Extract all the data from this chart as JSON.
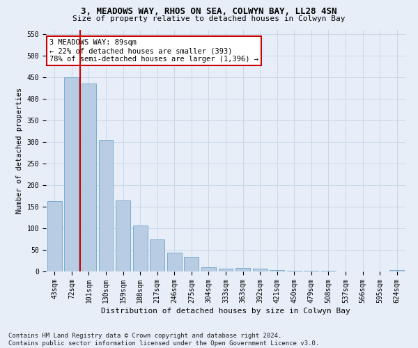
{
  "title1": "3, MEADOWS WAY, RHOS ON SEA, COLWYN BAY, LL28 4SN",
  "title2": "Size of property relative to detached houses in Colwyn Bay",
  "xlabel": "Distribution of detached houses by size in Colwyn Bay",
  "ylabel": "Number of detached properties",
  "categories": [
    "43sqm",
    "72sqm",
    "101sqm",
    "130sqm",
    "159sqm",
    "188sqm",
    "217sqm",
    "246sqm",
    "275sqm",
    "304sqm",
    "333sqm",
    "363sqm",
    "392sqm",
    "421sqm",
    "450sqm",
    "479sqm",
    "508sqm",
    "537sqm",
    "566sqm",
    "595sqm",
    "624sqm"
  ],
  "values": [
    163,
    450,
    435,
    305,
    165,
    107,
    74,
    44,
    34,
    9,
    7,
    8,
    6,
    3,
    2,
    1,
    1,
    0,
    0,
    0,
    4
  ],
  "bar_color": "#b8cce4",
  "bar_edge_color": "#7aadce",
  "grid_color": "#c8d8e8",
  "vline_x": 1.5,
  "vline_color": "#cc0000",
  "annotation_text": "3 MEADOWS WAY: 89sqm\n← 22% of detached houses are smaller (393)\n78% of semi-detached houses are larger (1,396) →",
  "annotation_box_color": "#ffffff",
  "annotation_box_edge": "#cc0000",
  "ylim": [
    0,
    560
  ],
  "yticks": [
    0,
    50,
    100,
    150,
    200,
    250,
    300,
    350,
    400,
    450,
    500,
    550
  ],
  "footnote": "Contains HM Land Registry data © Crown copyright and database right 2024.\nContains public sector information licensed under the Open Government Licence v3.0.",
  "bg_color": "#e8eef8",
  "title1_fontsize": 9,
  "title2_fontsize": 8,
  "tick_fontsize": 7,
  "ylabel_fontsize": 7.5,
  "xlabel_fontsize": 8,
  "annot_fontsize": 7.5
}
